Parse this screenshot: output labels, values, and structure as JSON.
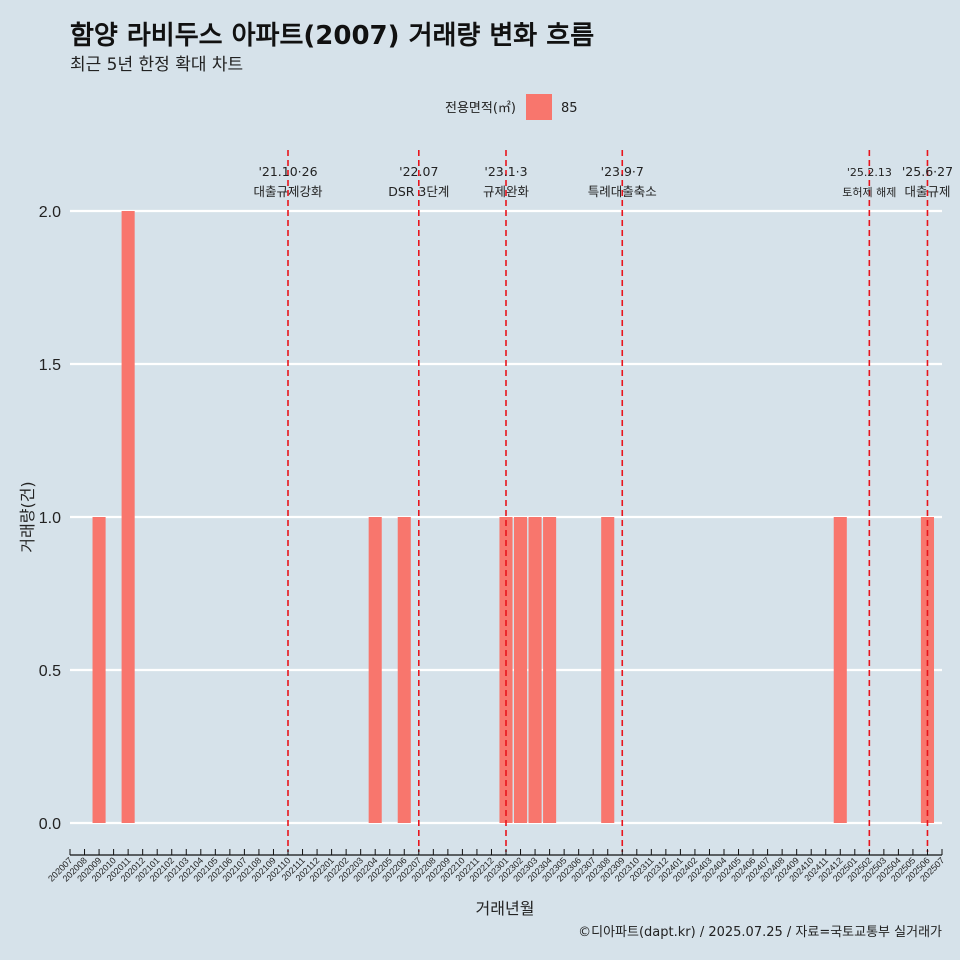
{
  "chart_data": {
    "type": "bar",
    "title": "함양 라비두스 아파트(2007) 거래량 변화 흐름",
    "subtitle": "최근 5년 한정 확대 차트",
    "xlabel": "거래년월",
    "ylabel": "거래량(건)",
    "ylim": [
      0,
      2
    ],
    "yticks": [
      "0.0",
      "0.5",
      "1.0",
      "1.5",
      "2.0"
    ],
    "grid": true,
    "legend": {
      "title": "전용면적(㎡)",
      "position": "top-center",
      "entries": [
        "85"
      ]
    },
    "categories": [
      "202007",
      "202008",
      "202009",
      "202010",
      "202011",
      "202012",
      "202101",
      "202102",
      "202103",
      "202104",
      "202105",
      "202106",
      "202107",
      "202108",
      "202109",
      "202110",
      "202111",
      "202112",
      "202201",
      "202202",
      "202203",
      "202204",
      "202205",
      "202206",
      "202207",
      "202208",
      "202209",
      "202210",
      "202211",
      "202212",
      "202301",
      "202302",
      "202303",
      "202304",
      "202305",
      "202306",
      "202307",
      "202308",
      "202309",
      "202310",
      "202311",
      "202312",
      "202401",
      "202402",
      "202403",
      "202404",
      "202405",
      "202406",
      "202407",
      "202408",
      "202409",
      "202410",
      "202411",
      "202412",
      "202501",
      "202502",
      "202503",
      "202504",
      "202505",
      "202506",
      "202507"
    ],
    "series": [
      {
        "name": "85",
        "color": "#f8766d",
        "values": [
          0,
          0,
          1,
          0,
          2,
          0,
          0,
          0,
          0,
          0,
          0,
          0,
          0,
          0,
          0,
          0,
          0,
          0,
          0,
          0,
          0,
          1,
          0,
          1,
          0,
          0,
          0,
          0,
          0,
          0,
          1,
          1,
          1,
          1,
          0,
          0,
          0,
          1,
          0,
          0,
          0,
          0,
          0,
          0,
          0,
          0,
          0,
          0,
          0,
          0,
          0,
          0,
          0,
          1,
          0,
          0,
          0,
          0,
          0,
          1,
          0
        ]
      }
    ],
    "annotations": [
      {
        "category": "202110",
        "date": "'21.10·26",
        "label": "대출규제강화",
        "size": "normal"
      },
      {
        "category": "202207",
        "date": "'22.07",
        "label": "DSR 3단계",
        "size": "normal"
      },
      {
        "category": "202301",
        "date": "'23.1·3",
        "label": "규제완화",
        "size": "normal"
      },
      {
        "category": "202309",
        "date": "'23.9·7",
        "label": "특례대출축소",
        "size": "normal"
      },
      {
        "category": "202502",
        "date": "'25.2.13",
        "label": "토허제 해제",
        "size": "small"
      },
      {
        "category": "202506",
        "date": "'25.6·27",
        "label": "대출규제",
        "size": "normal"
      }
    ],
    "annotation_color": "#e8141c"
  },
  "caption": "©디아파트(dapt.kr) / 2025.07.25 / 자료=국토교통부 실거래가"
}
